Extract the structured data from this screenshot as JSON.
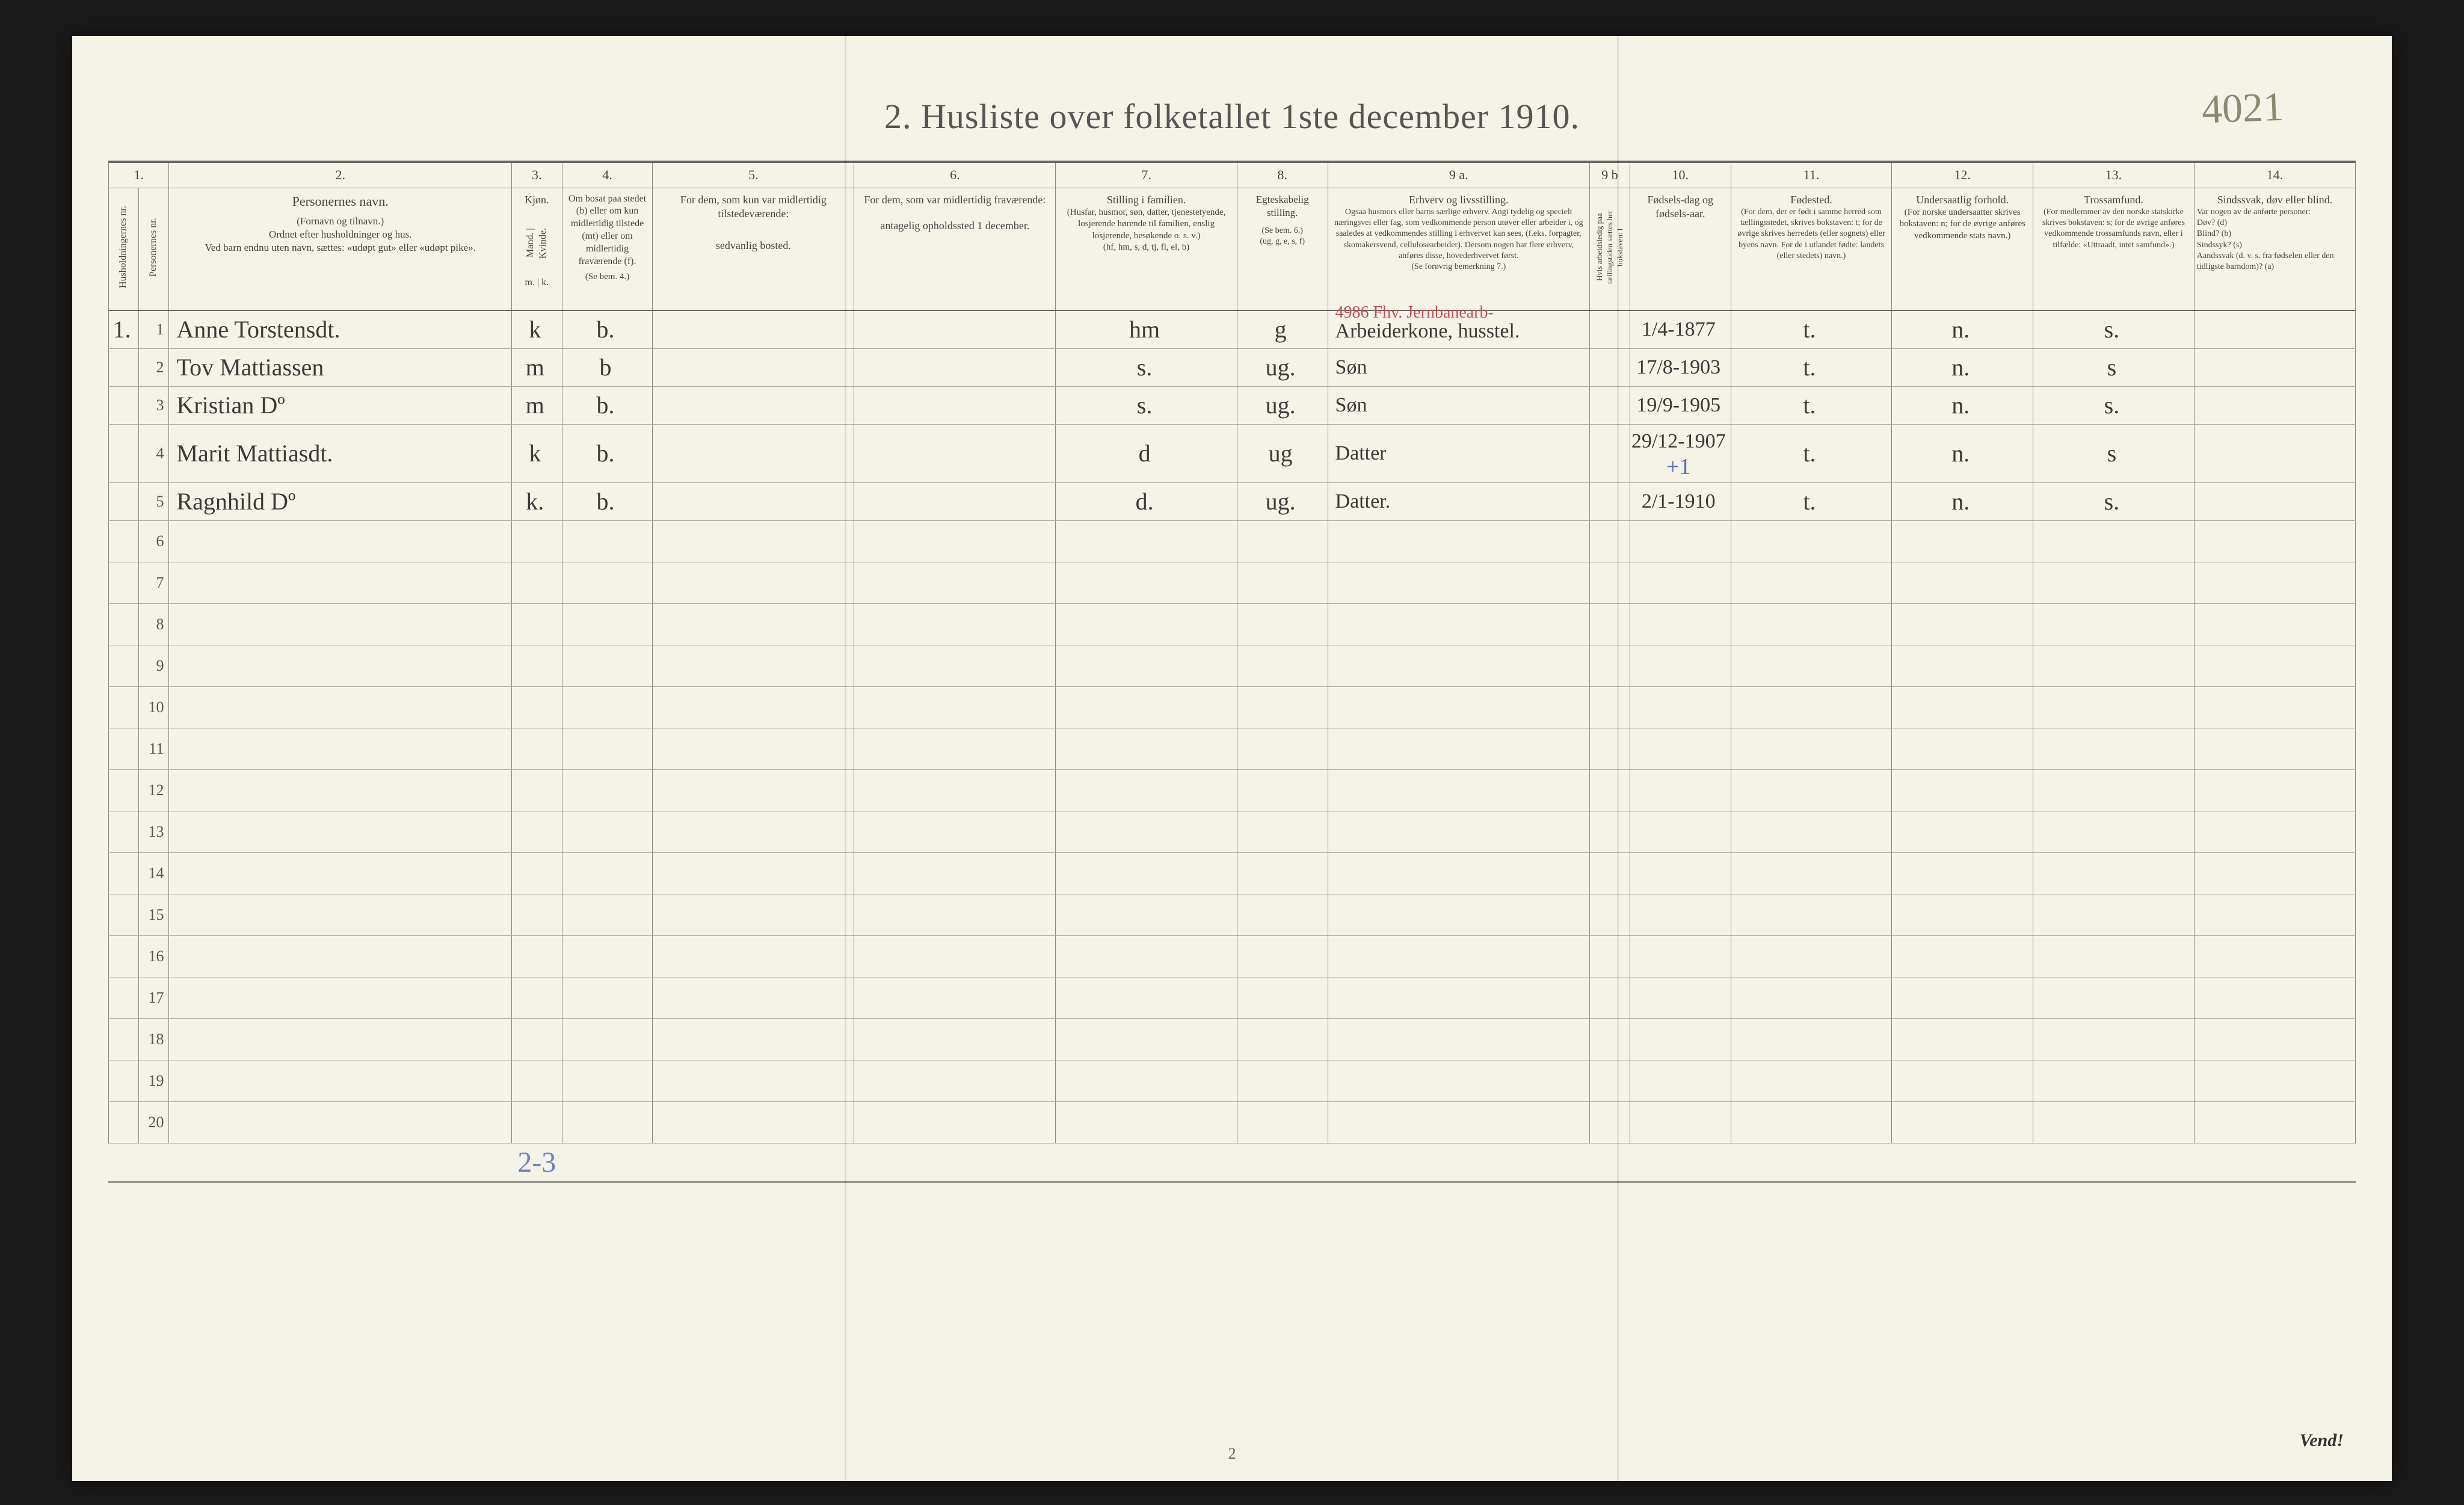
{
  "document": {
    "title": "2.  Husliste over folketallet 1ste december 1910.",
    "handwritten_topright": "4021",
    "page_number": "2",
    "footer_right": "Vend!",
    "bottom_annotation": "2-3",
    "paper_bg": "#f5f3e8",
    "ink_color": "#3a3a3a",
    "red_ink": "#c05050",
    "blue_ink": "#7080c0",
    "rule_color": "#888888"
  },
  "columns": {
    "widths_pct": [
      1.5,
      1.5,
      17,
      2.5,
      4.5,
      10,
      10,
      9,
      4.5,
      13,
      2,
      5,
      8,
      7,
      8,
      8
    ],
    "numbers": [
      "1.",
      "",
      "2.",
      "3.",
      "4.",
      "5.",
      "6.",
      "7.",
      "8.",
      "9 a.",
      "9 b",
      "10.",
      "11.",
      "12.",
      "13.",
      "14."
    ],
    "headers": {
      "c1a": "Husholdningernes nr.",
      "c1b": "Personernes nr.",
      "c2_title": "Personernes navn.",
      "c2_sub": "(Fornavn og tilnavn.)\nOrdnet efter husholdninger og hus.\nVed barn endnu uten navn, sættes: «udøpt gut» eller «udøpt pike».",
      "c3_title": "Kjøn.",
      "c3_sub": "Mand. | Kvinde.",
      "c3_foot": "m. | k.",
      "c4_title": "Om bosat paa stedet (b) eller om kun midlertidig tilstede (mt) eller om midlertidig fraværende (f).",
      "c4_sub": "(Se bem. 4.)",
      "c5_title": "For dem, som kun var midlertidig tilstedeværende:",
      "c5_sub": "sedvanlig bosted.",
      "c6_title": "For dem, som var midlertidig fraværende:",
      "c6_sub": "antagelig opholdssted 1 december.",
      "c7_title": "Stilling i familien.",
      "c7_sub": "(Husfar, husmor, søn, datter, tjenestetyende, losjerende hørende til familien, enslig losjerende, besøkende o. s. v.)\n(hf, hm, s, d, tj, fl, el, b)",
      "c8_title": "Egteskabelig stilling.",
      "c8_sub": "(Se bem. 6.)\n(ug, g, e, s, f)",
      "c9a_title": "Erhverv og livsstilling.",
      "c9a_sub": "Ogsaa husmors eller barns særlige erhverv. Angi tydelig og specielt næringsvei eller fag, som vedkommende person utøver eller arbeider i, og saaledes at vedkommendes stilling i erhvervet kan sees, (f.eks. forpagter, skomakersvend, cellulosearbeider). Dersom nogen har flere erhverv, anføres disse, hovederhvervet først.\n(Se forøvrig bemerkning 7.)",
      "c9b_title": "Hvis arbeidsledig paa tællingstiden sættes her bokstaven: l",
      "c10_title": "Fødsels-dag og fødsels-aar.",
      "c11_title": "Fødested.",
      "c11_sub": "(For dem, der er født i samme herred som tællingsstedet, skrives bokstaven: t; for de øvrige skrives herredets (eller sognets) eller byens navn. For de i utlandet fødte: landets (eller stedets) navn.)",
      "c12_title": "Undersaatlig forhold.",
      "c12_sub": "(For norske undersaatter skrives bokstaven: n; for de øvrige anføres vedkommende stats navn.)",
      "c13_title": "Trossamfund.",
      "c13_sub": "(For medlemmer av den norske statskirke skrives bokstaven: s; for de øvrige anføres vedkommende trossamfunds navn, eller i tilfælde: «Uttraadt, intet samfund».)",
      "c14_title": "Sindssvak, døv eller blind.",
      "c14_sub": "Var nogen av de anførte personer:\nDøv? (d)\nBlind? (b)\nSindssyk? (s)\nAandssvak (d. v. s. fra fødselen eller den tidligste barndom)? (a)"
    }
  },
  "red_annotation": "4986  Fhv. Jernbanearb-",
  "rows": [
    {
      "hh": "1.",
      "pn": "1",
      "name": "Anne Torstensdt.",
      "sex": "k",
      "res": "b.",
      "c5": "",
      "c6": "",
      "fam": "hm",
      "mar": "g",
      "occ": "Arbeiderkone, husstel.",
      "c9b": "",
      "birth": "1/4-1877",
      "place": "t.",
      "nat": "n.",
      "rel": "s.",
      "c14": ""
    },
    {
      "hh": "",
      "pn": "2",
      "name": "Tov Mattiassen",
      "sex": "m",
      "res": "b",
      "c5": "",
      "c6": "",
      "fam": "s.",
      "mar": "ug.",
      "occ": "Søn",
      "c9b": "",
      "birth": "17/8-1903",
      "place": "t.",
      "nat": "n.",
      "rel": "s",
      "c14": ""
    },
    {
      "hh": "",
      "pn": "3",
      "name": "Kristian Dº",
      "sex": "m",
      "res": "b.",
      "c5": "",
      "c6": "",
      "fam": "s.",
      "mar": "ug.",
      "occ": "Søn",
      "c9b": "",
      "birth": "19/9-1905",
      "place": "t.",
      "nat": "n.",
      "rel": "s.",
      "c14": ""
    },
    {
      "hh": "",
      "pn": "4",
      "name": "Marit Mattiasdt.",
      "sex": "k",
      "res": "b.",
      "c5": "",
      "c6": "",
      "fam": "d",
      "mar": "ug",
      "occ": "Datter",
      "c9b": "",
      "birth": "29/12-1907",
      "place": "t.",
      "nat": "n.",
      "rel": "s",
      "c14": ""
    },
    {
      "hh": "",
      "pn": "5",
      "name": "Ragnhild Dº",
      "sex": "k.",
      "res": "b.",
      "c5": "",
      "c6": "",
      "fam": "d.",
      "mar": "ug.",
      "occ": "Datter.",
      "c9b": "",
      "birth": "2/1-1910",
      "place": "t.",
      "nat": "n.",
      "rel": "s.",
      "c14": ""
    }
  ],
  "empty_row_numbers": [
    "6",
    "7",
    "8",
    "9",
    "10",
    "11",
    "12",
    "13",
    "14",
    "15",
    "16",
    "17",
    "18",
    "19",
    "20"
  ]
}
